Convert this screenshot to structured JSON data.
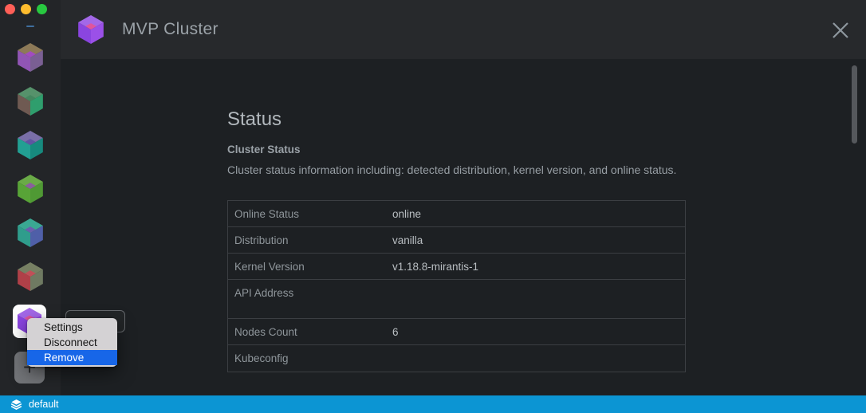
{
  "window": {
    "traffic_lights": {
      "close": "red",
      "minimize": "yellow",
      "zoom": "green"
    }
  },
  "header": {
    "title": "MVP Cluster",
    "icon_faces": [
      "#a368e8",
      "#8a45e0",
      "#9b50e8",
      "#e0559d"
    ]
  },
  "sidebar": {
    "clusters": [
      {
        "name": "cluster-1",
        "faces": [
          "#8d7a58",
          "#9155b5",
          "#7a5f93",
          "#a14cc0"
        ]
      },
      {
        "name": "cluster-2",
        "faces": [
          "#56926b",
          "#6f5a52",
          "#2f9e6d",
          "#44875f"
        ]
      },
      {
        "name": "cluster-3",
        "faces": [
          "#7a6fa8",
          "#22a093",
          "#178a7e",
          "#5f55a2"
        ]
      },
      {
        "name": "cluster-4",
        "faces": [
          "#6aab47",
          "#58a437",
          "#4f9934",
          "#8a5f9e"
        ]
      },
      {
        "name": "cluster-5",
        "faces": [
          "#3aa893",
          "#2f9d8c",
          "#4f5fa8",
          "#6a5fae"
        ]
      },
      {
        "name": "cluster-6",
        "faces": [
          "#778063",
          "#b04048",
          "#6f7a62",
          "#c05058"
        ]
      },
      {
        "name": "mvp-cluster-active",
        "faces": [
          "#a368e8",
          "#8a45e0",
          "#9b50e8",
          "#e0559d"
        ]
      }
    ],
    "add_button_label": "+"
  },
  "context_menu": {
    "items": [
      {
        "label": "Settings"
      },
      {
        "label": "Disconnect"
      },
      {
        "label": "Remove"
      }
    ],
    "highlighted_item": "Remove",
    "highlight_color": "#1766e8"
  },
  "status_page": {
    "heading": "Status",
    "section_title": "Cluster Status",
    "section_description": "Cluster status information including: detected distribution, kernel version, and online status.",
    "table_rows": [
      {
        "label": "Online Status",
        "value": "online"
      },
      {
        "label": "Distribution",
        "value": "vanilla"
      },
      {
        "label": "Kernel Version",
        "value": "v1.18.8-mirantis-1"
      },
      {
        "label": "API Address",
        "value": ""
      },
      {
        "label": "Nodes Count",
        "value": "6"
      },
      {
        "label": "Kubeconfig",
        "value": ""
      }
    ]
  },
  "statusbar": {
    "context": "default",
    "color": "#0c95d3"
  }
}
